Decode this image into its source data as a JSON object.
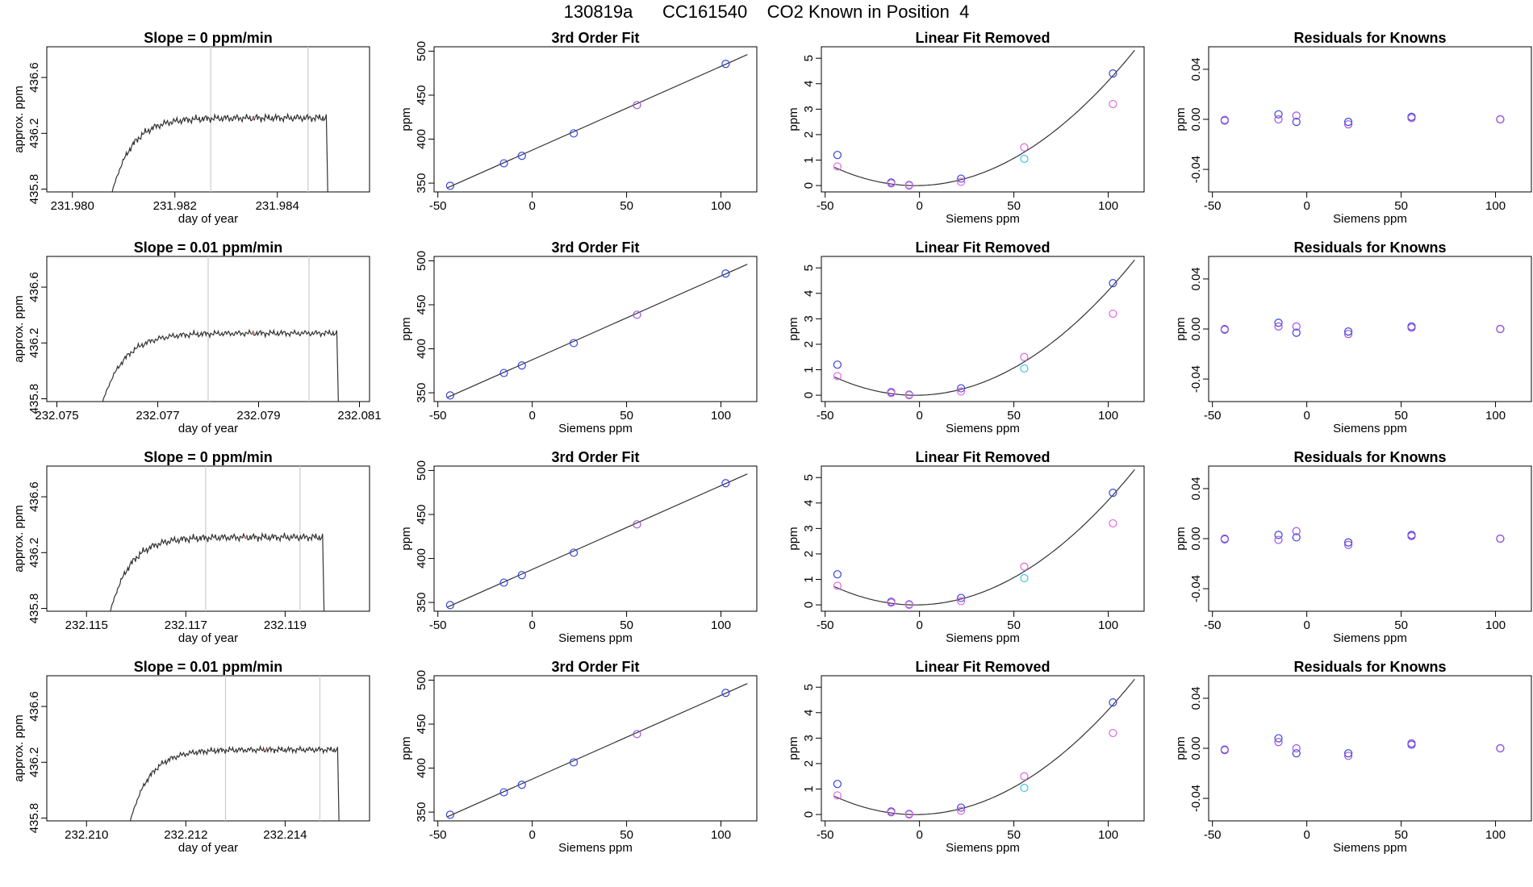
{
  "page": {
    "title": "130819a      CC161540    CO2 Known in Position  4"
  },
  "colors": {
    "frame": "#000000",
    "curve": "#333333",
    "marker_line": "#cccccc",
    "pt_blue": "#3344dd",
    "pt_violet": "#a050e0",
    "pt_magenta": "#dd66dd",
    "pt_cyan": "#33c8e8",
    "pt_pink": "#f08080"
  },
  "chart_data": [
    {
      "type": "line",
      "panel": "timeseries",
      "row": 0,
      "title": "Slope =  0  ppm/min",
      "xlabel": "day of year",
      "ylabel": "approx. ppm",
      "xlim": [
        231.9795,
        231.9858
      ],
      "ylim": [
        435.78,
        436.82
      ],
      "xticks": [
        231.98,
        231.982,
        231.984
      ],
      "xtick_labels": [
        "231.980",
        "231.982",
        "231.984"
      ],
      "yticks": [
        435.8,
        436.2,
        436.6
      ],
      "ytick_labels": [
        "435.8",
        "436.2",
        "436.6"
      ],
      "t_start": 231.9806,
      "t_end": 231.985,
      "vlines": [
        231.9827,
        231.9846
      ],
      "plateau": 436.31,
      "wiggle": 0.025,
      "end_mark": 231.98355
    },
    {
      "type": "scatter",
      "panel": "third_order_fit",
      "row": 0,
      "title": "3rd Order Fit",
      "xlabel": "",
      "ylabel": "ppm",
      "xlim": [
        -52,
        119
      ],
      "ylim": [
        340,
        505
      ],
      "xticks": [
        -50,
        0,
        50,
        100
      ],
      "yticks": [
        350,
        400,
        450,
        500
      ],
      "x": [
        -43.5,
        -15,
        -5.5,
        22,
        55.5,
        102.5
      ],
      "y": [
        347,
        372.5,
        381,
        406.5,
        438.7,
        485.5
      ],
      "point_colors": [
        "blue",
        "blue",
        "blue",
        "blue",
        "violet",
        "blue"
      ],
      "fit": {
        "slope": 0.9525,
        "intercept": 387.5,
        "x_range": [
          -45,
          114
        ]
      }
    },
    {
      "type": "scatter",
      "panel": "linear_fit_removed",
      "row": 0,
      "title": "Linear Fit Removed",
      "xlabel": "Siemens ppm",
      "ylabel": "ppm",
      "xlim": [
        -52,
        119
      ],
      "ylim": [
        -0.25,
        5.45
      ],
      "xticks": [
        -50,
        0,
        50,
        100
      ],
      "yticks": [
        0,
        1,
        2,
        3,
        4,
        5
      ],
      "series": [
        {
          "color": "blue",
          "x": [
            -43.5,
            -15,
            -5.5,
            22,
            102.5
          ],
          "y": [
            1.2,
            0.12,
            0.02,
            0.27,
            4.4
          ]
        },
        {
          "color": "magenta",
          "x": [
            -43.5,
            -15,
            -5.5,
            22,
            55.5,
            102.5
          ],
          "y": [
            0.75,
            0.08,
            0.0,
            0.15,
            1.5,
            3.2
          ]
        },
        {
          "color": "cyan",
          "x": [
            55.5
          ],
          "y": [
            1.05
          ]
        }
      ],
      "fit": {
        "a": 0.000393,
        "b": 0.0018,
        "c": 0.0,
        "x_range": [
          -45,
          114
        ]
      }
    },
    {
      "type": "scatter",
      "panel": "residuals",
      "row": 0,
      "title": "Residuals for Knowns",
      "xlabel": "Siemens ppm",
      "ylabel": "ppm",
      "xlim": [
        -52,
        119
      ],
      "ylim": [
        -0.058,
        0.058
      ],
      "xticks": [
        -50,
        0,
        50,
        100
      ],
      "yticks": [
        -0.04,
        0.0,
        0.04
      ],
      "ytick_labels": [
        "-0.04",
        "0.00",
        "0.04"
      ],
      "series": [
        {
          "color": "blue",
          "x": [
            -43.5,
            -15,
            -5.5,
            22,
            55.5,
            102.5
          ],
          "y": [
            -0.001,
            0.004,
            -0.002,
            -0.002,
            0.002,
            0.0
          ]
        },
        {
          "color": "violet",
          "x": [
            -43.5,
            -15,
            -5.5,
            22,
            55.5,
            102.5
          ],
          "y": [
            -0.0005,
            0.0,
            0.003,
            -0.004,
            0.001,
            0.0
          ]
        }
      ]
    },
    {
      "type": "line",
      "panel": "timeseries",
      "row": 1,
      "title": "Slope =  0.01  ppm/min",
      "xlabel": "day of year",
      "ylabel": "approx. ppm",
      "xlim": [
        232.0748,
        232.0812
      ],
      "ylim": [
        435.78,
        436.82
      ],
      "xticks": [
        232.075,
        232.077,
        232.079,
        232.081
      ],
      "xtick_labels": [
        "232.075",
        "232.077",
        "232.079",
        "232.081"
      ],
      "yticks": [
        435.8,
        436.2,
        436.6
      ],
      "ytick_labels": [
        "435.8",
        "436.2",
        "436.6"
      ],
      "t_start": 232.0757,
      "t_end": 232.0806,
      "vlines": [
        232.078,
        232.08
      ],
      "plateau": 436.27,
      "wiggle": 0.02,
      "end_mark": 232.0789
    },
    {
      "type": "scatter",
      "panel": "third_order_fit",
      "row": 1,
      "title": "3rd Order Fit",
      "xlabel": "Siemens ppm",
      "ylabel": "ppm",
      "xlim": [
        -52,
        119
      ],
      "ylim": [
        340,
        505
      ],
      "xticks": [
        -50,
        0,
        50,
        100
      ],
      "yticks": [
        350,
        400,
        450,
        500
      ],
      "x": [
        -43.5,
        -15,
        -5.5,
        22,
        55.5,
        102.5
      ],
      "y": [
        347,
        372.5,
        381,
        406.5,
        438.7,
        485.5
      ],
      "point_colors": [
        "blue",
        "blue",
        "blue",
        "blue",
        "violet",
        "blue"
      ],
      "fit": {
        "slope": 0.9525,
        "intercept": 387.5,
        "x_range": [
          -45,
          114
        ]
      }
    },
    {
      "type": "scatter",
      "panel": "linear_fit_removed",
      "row": 1,
      "title": "Linear Fit Removed",
      "xlabel": "Siemens ppm",
      "ylabel": "ppm",
      "xlim": [
        -52,
        119
      ],
      "ylim": [
        -0.25,
        5.45
      ],
      "xticks": [
        -50,
        0,
        50,
        100
      ],
      "yticks": [
        0,
        1,
        2,
        3,
        4,
        5
      ],
      "series": [
        {
          "color": "blue",
          "x": [
            -43.5,
            -15,
            -5.5,
            22,
            102.5
          ],
          "y": [
            1.2,
            0.12,
            0.02,
            0.27,
            4.4
          ]
        },
        {
          "color": "magenta",
          "x": [
            -43.5,
            -15,
            -5.5,
            22,
            55.5,
            102.5
          ],
          "y": [
            0.75,
            0.08,
            0.0,
            0.15,
            1.5,
            3.2
          ]
        },
        {
          "color": "cyan",
          "x": [
            55.5
          ],
          "y": [
            1.05
          ]
        }
      ],
      "fit": {
        "a": 0.000393,
        "b": 0.0018,
        "c": 0.0,
        "x_range": [
          -45,
          114
        ]
      }
    },
    {
      "type": "scatter",
      "panel": "residuals",
      "row": 1,
      "title": "Residuals for Knowns",
      "xlabel": "Siemens ppm",
      "ylabel": "ppm",
      "xlim": [
        -52,
        119
      ],
      "ylim": [
        -0.058,
        0.058
      ],
      "xticks": [
        -50,
        0,
        50,
        100
      ],
      "yticks": [
        -0.04,
        0.0,
        0.04
      ],
      "ytick_labels": [
        "-0.04",
        "0.00",
        "0.04"
      ],
      "series": [
        {
          "color": "blue",
          "x": [
            -43.5,
            -15,
            -5.5,
            22,
            55.5,
            102.5
          ],
          "y": [
            -0.0005,
            0.005,
            -0.003,
            -0.002,
            0.002,
            0.0
          ]
        },
        {
          "color": "violet",
          "x": [
            -43.5,
            -15,
            -5.5,
            22,
            55.5,
            102.5
          ],
          "y": [
            0.0,
            0.002,
            0.002,
            -0.004,
            0.001,
            0.0
          ]
        }
      ]
    },
    {
      "type": "line",
      "panel": "timeseries",
      "row": 2,
      "title": "Slope =  0  ppm/min",
      "xlabel": "day of year",
      "ylabel": "approx. ppm",
      "xlim": [
        232.1142,
        232.1207
      ],
      "ylim": [
        435.78,
        436.82
      ],
      "xticks": [
        232.115,
        232.117,
        232.119
      ],
      "xtick_labels": [
        "232.115",
        "232.117",
        "232.119"
      ],
      "yticks": [
        435.8,
        436.2,
        436.6
      ],
      "ytick_labels": [
        "435.8",
        "436.2",
        "436.6"
      ],
      "t_start": 232.1153,
      "t_end": 232.1198,
      "vlines": [
        232.1174,
        232.1193
      ],
      "plateau": 436.31,
      "wiggle": 0.025,
      "end_mark": 232.1182
    },
    {
      "type": "scatter",
      "panel": "third_order_fit",
      "row": 2,
      "title": "3rd Order Fit",
      "xlabel": "Siemens ppm",
      "ylabel": "ppm",
      "xlim": [
        -52,
        119
      ],
      "ylim": [
        340,
        505
      ],
      "xticks": [
        -50,
        0,
        50,
        100
      ],
      "yticks": [
        350,
        400,
        450,
        500
      ],
      "x": [
        -43.5,
        -15,
        -5.5,
        22,
        55.5,
        102.5
      ],
      "y": [
        347,
        372.5,
        381,
        406.5,
        438.7,
        485.5
      ],
      "point_colors": [
        "blue",
        "blue",
        "blue",
        "blue",
        "violet",
        "blue"
      ],
      "fit": {
        "slope": 0.9525,
        "intercept": 387.5,
        "x_range": [
          -45,
          114
        ]
      }
    },
    {
      "type": "scatter",
      "panel": "linear_fit_removed",
      "row": 2,
      "title": "Linear Fit Removed",
      "xlabel": "Siemens ppm",
      "ylabel": "ppm",
      "xlim": [
        -52,
        119
      ],
      "ylim": [
        -0.25,
        5.45
      ],
      "xticks": [
        -50,
        0,
        50,
        100
      ],
      "yticks": [
        0,
        1,
        2,
        3,
        4,
        5
      ],
      "series": [
        {
          "color": "blue",
          "x": [
            -43.5,
            -15,
            -5.5,
            22,
            102.5
          ],
          "y": [
            1.2,
            0.12,
            0.02,
            0.27,
            4.4
          ]
        },
        {
          "color": "magenta",
          "x": [
            -43.5,
            -15,
            -5.5,
            22,
            55.5,
            102.5
          ],
          "y": [
            0.75,
            0.08,
            0.0,
            0.15,
            1.5,
            3.2
          ]
        },
        {
          "color": "cyan",
          "x": [
            55.5
          ],
          "y": [
            1.05
          ]
        }
      ],
      "fit": {
        "a": 0.000393,
        "b": 0.0018,
        "c": 0.0,
        "x_range": [
          -45,
          114
        ]
      }
    },
    {
      "type": "scatter",
      "panel": "residuals",
      "row": 2,
      "title": "Residuals for Knowns",
      "xlabel": "Siemens ppm",
      "ylabel": "ppm",
      "xlim": [
        -52,
        119
      ],
      "ylim": [
        -0.058,
        0.058
      ],
      "xticks": [
        -50,
        0,
        50,
        100
      ],
      "yticks": [
        -0.04,
        0.0,
        0.04
      ],
      "ytick_labels": [
        "-0.04",
        "0.00",
        "0.04"
      ],
      "series": [
        {
          "color": "blue",
          "x": [
            -43.5,
            -15,
            -5.5,
            22,
            55.5,
            102.5
          ],
          "y": [
            -0.0005,
            0.003,
            0.001,
            -0.003,
            0.003,
            0.0
          ]
        },
        {
          "color": "violet",
          "x": [
            -43.5,
            -15,
            -5.5,
            22,
            55.5,
            102.5
          ],
          "y": [
            0.0,
            -0.001,
            0.006,
            -0.005,
            0.002,
            0.0
          ]
        }
      ]
    },
    {
      "type": "line",
      "panel": "timeseries",
      "row": 3,
      "title": "Slope =  0.01  ppm/min",
      "xlabel": "day of year",
      "ylabel": "approx. ppm",
      "xlim": [
        232.2092,
        232.2157
      ],
      "ylim": [
        435.78,
        436.82
      ],
      "xticks": [
        232.21,
        232.212,
        232.214
      ],
      "xtick_labels": [
        "232.210",
        "232.212",
        "232.214"
      ],
      "yticks": [
        435.8,
        436.2,
        436.6
      ],
      "ytick_labels": [
        "435.8",
        "436.2",
        "436.6"
      ],
      "t_start": 232.2107,
      "t_end": 232.2151,
      "vlines": [
        232.2128,
        232.2147
      ],
      "plateau": 436.29,
      "wiggle": 0.02,
      "end_mark": 232.2136
    },
    {
      "type": "scatter",
      "panel": "third_order_fit",
      "row": 3,
      "title": "3rd Order Fit",
      "xlabel": "Siemens ppm",
      "ylabel": "ppm",
      "xlim": [
        -52,
        119
      ],
      "ylim": [
        340,
        505
      ],
      "xticks": [
        -50,
        0,
        50,
        100
      ],
      "yticks": [
        350,
        400,
        450,
        500
      ],
      "x": [
        -43.5,
        -15,
        -5.5,
        22,
        55.5,
        102.5
      ],
      "y": [
        347,
        372.5,
        381,
        406.5,
        438.7,
        485.5
      ],
      "point_colors": [
        "blue",
        "blue",
        "blue",
        "blue",
        "violet",
        "blue"
      ],
      "fit": {
        "slope": 0.9525,
        "intercept": 387.5,
        "x_range": [
          -45,
          114
        ]
      }
    },
    {
      "type": "scatter",
      "panel": "linear_fit_removed",
      "row": 3,
      "title": "Linear Fit Removed",
      "xlabel": "Siemens ppm",
      "ylabel": "ppm",
      "xlim": [
        -52,
        119
      ],
      "ylim": [
        -0.25,
        5.45
      ],
      "xticks": [
        -50,
        0,
        50,
        100
      ],
      "yticks": [
        0,
        1,
        2,
        3,
        4,
        5
      ],
      "series": [
        {
          "color": "blue",
          "x": [
            -43.5,
            -15,
            -5.5,
            22,
            102.5
          ],
          "y": [
            1.2,
            0.12,
            0.02,
            0.27,
            4.4
          ]
        },
        {
          "color": "magenta",
          "x": [
            -43.5,
            -15,
            -5.5,
            22,
            55.5,
            102.5
          ],
          "y": [
            0.75,
            0.08,
            0.0,
            0.15,
            1.5,
            3.2
          ]
        },
        {
          "color": "cyan",
          "x": [
            55.5
          ],
          "y": [
            1.05
          ]
        }
      ],
      "fit": {
        "a": 0.000393,
        "b": 0.0018,
        "c": 0.0,
        "x_range": [
          -45,
          114
        ]
      }
    },
    {
      "type": "scatter",
      "panel": "residuals",
      "row": 3,
      "title": "Residuals for Knowns",
      "xlabel": "Siemens ppm",
      "ylabel": "ppm",
      "xlim": [
        -52,
        119
      ],
      "ylim": [
        -0.058,
        0.058
      ],
      "xticks": [
        -50,
        0,
        50,
        100
      ],
      "yticks": [
        -0.04,
        0.0,
        0.04
      ],
      "ytick_labels": [
        "-0.04",
        "0.00",
        "0.04"
      ],
      "series": [
        {
          "color": "blue",
          "x": [
            -43.5,
            -15,
            -5.5,
            22,
            55.5,
            102.5
          ],
          "y": [
            -0.001,
            0.008,
            -0.004,
            -0.004,
            0.003,
            0.0
          ]
        },
        {
          "color": "violet",
          "x": [
            -43.5,
            -15,
            -5.5,
            22,
            55.5,
            102.5
          ],
          "y": [
            -0.0015,
            0.005,
            0.0,
            -0.006,
            0.004,
            0.0
          ]
        }
      ]
    }
  ]
}
